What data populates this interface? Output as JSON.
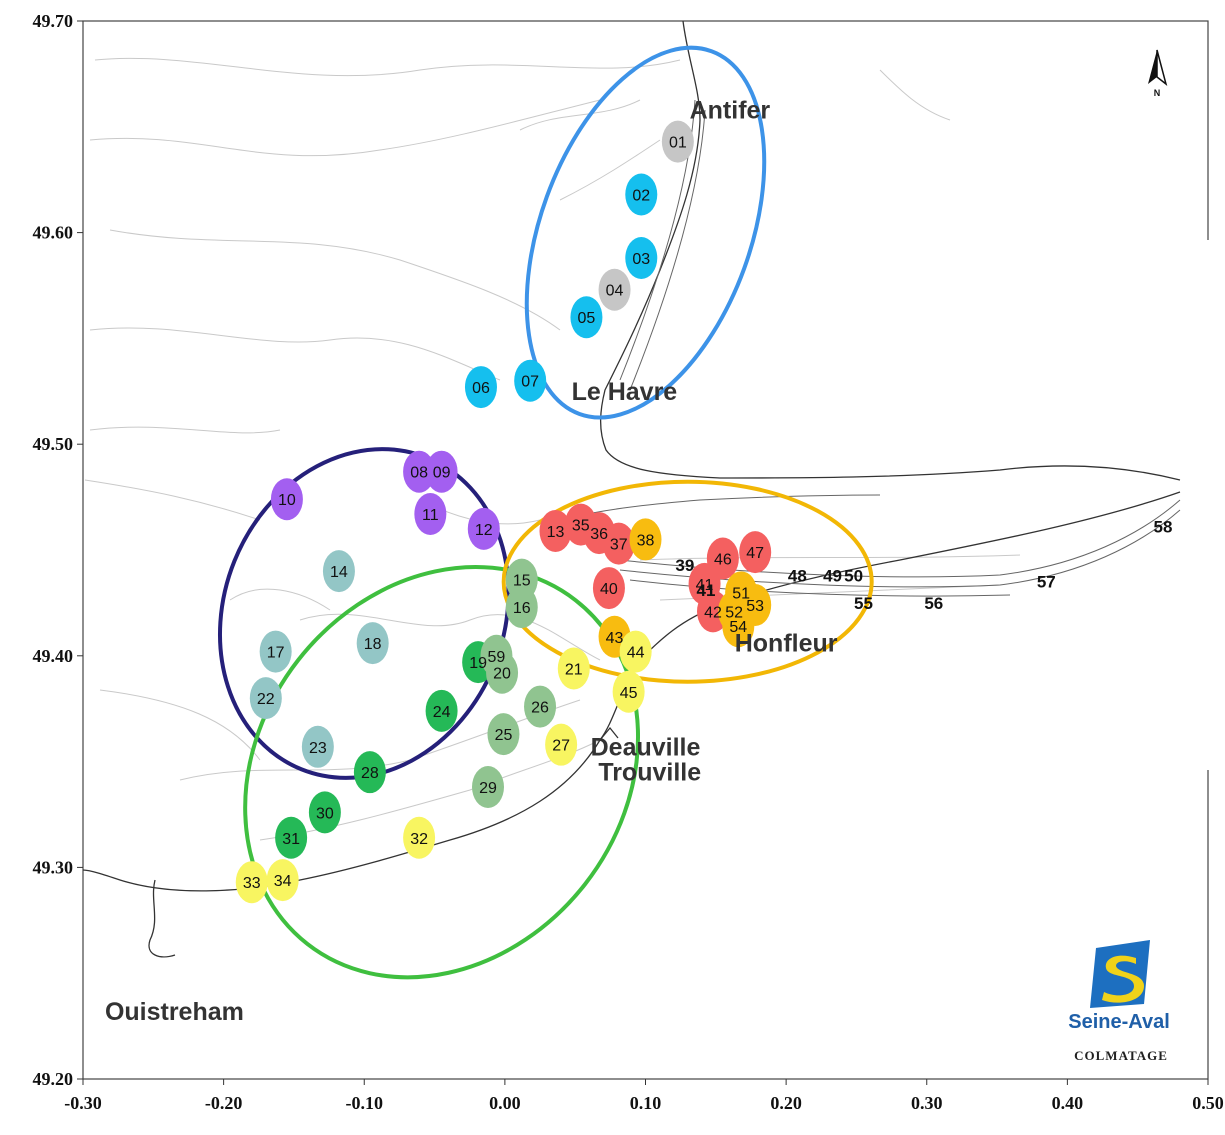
{
  "axes": {
    "x_ticks": [
      {
        "value": -0.3,
        "label": "-0.30"
      },
      {
        "value": -0.2,
        "label": "-0.20"
      },
      {
        "value": -0.1,
        "label": "-0.10"
      },
      {
        "value": 0.0,
        "label": "0.00"
      },
      {
        "value": 0.1,
        "label": "0.10"
      },
      {
        "value": 0.2,
        "label": "0.20"
      },
      {
        "value": 0.3,
        "label": "0.30"
      },
      {
        "value": 0.4,
        "label": "0.40"
      },
      {
        "value": 0.5,
        "label": "0.50"
      }
    ],
    "y_ticks": [
      {
        "value": 49.7,
        "label": "49.70"
      },
      {
        "value": 49.6,
        "label": "49.60"
      },
      {
        "value": 49.5,
        "label": "49.50"
      },
      {
        "value": 49.4,
        "label": "49.40"
      },
      {
        "value": 49.3,
        "label": "49.30"
      },
      {
        "value": 49.2,
        "label": "49.20"
      }
    ],
    "xlim": [
      -0.3,
      0.5
    ],
    "ylim": [
      49.2,
      49.7
    ]
  },
  "places": [
    {
      "name": "Antifer",
      "lon": 0.16,
      "lat": 49.654
    },
    {
      "name": "Le Havre",
      "lon": 0.085,
      "lat": 49.521
    },
    {
      "name": "Honfleur",
      "lon": 0.2,
      "lat": 49.402
    },
    {
      "name": "Deauville",
      "lon": 0.1,
      "lat": 49.353
    },
    {
      "name": "Trouville",
      "lon": 0.103,
      "lat": 49.341
    },
    {
      "name": "Ouistreham",
      "lon": -0.235,
      "lat": 49.228
    }
  ],
  "compass": {
    "label": "N"
  },
  "logo": {
    "name": "Seine-Aval",
    "caption": "COLMATAGE"
  },
  "groups": [
    {
      "color": "#3d93e8",
      "cx": 0.1,
      "cy": 49.6,
      "rx": 105,
      "ry": 193,
      "rot": 20
    },
    {
      "color": "#25207a",
      "cx": -0.1,
      "cy": 49.42,
      "rx": 140,
      "ry": 168,
      "rot": 22
    },
    {
      "color": "#3fbf3f",
      "cx": -0.045,
      "cy": 49.345,
      "rx": 182,
      "ry": 218,
      "rot": 38
    },
    {
      "color": "#f2b705",
      "cx": 0.13,
      "cy": 49.435,
      "rx": 184,
      "ry": 100,
      "rot": 0
    }
  ],
  "colors": {
    "grey": "#c6c6c6",
    "cyan": "#15bfee",
    "purple": "#a35ff0",
    "teal": "#93c6c6",
    "lightgreen": "#90c490",
    "green": "#25b957",
    "yellow": "#f8f561",
    "red": "#f46060",
    "orange": "#f8bc10"
  },
  "stations": [
    {
      "id": "01",
      "lon": 0.123,
      "lat": 49.643,
      "color": "grey"
    },
    {
      "id": "02",
      "lon": 0.097,
      "lat": 49.618,
      "color": "cyan"
    },
    {
      "id": "03",
      "lon": 0.097,
      "lat": 49.588,
      "color": "cyan"
    },
    {
      "id": "04",
      "lon": 0.078,
      "lat": 49.573,
      "color": "grey"
    },
    {
      "id": "05",
      "lon": 0.058,
      "lat": 49.56,
      "color": "cyan"
    },
    {
      "id": "06",
      "lon": -0.017,
      "lat": 49.527,
      "color": "cyan"
    },
    {
      "id": "07",
      "lon": 0.018,
      "lat": 49.53,
      "color": "cyan"
    },
    {
      "id": "08",
      "lon": -0.061,
      "lat": 49.487,
      "color": "purple"
    },
    {
      "id": "09",
      "lon": -0.045,
      "lat": 49.487,
      "color": "purple"
    },
    {
      "id": "10",
      "lon": -0.155,
      "lat": 49.474,
      "color": "purple"
    },
    {
      "id": "11",
      "lon": -0.053,
      "lat": 49.467,
      "color": "purple"
    },
    {
      "id": "12",
      "lon": -0.015,
      "lat": 49.46,
      "color": "purple"
    },
    {
      "id": "13",
      "lon": 0.036,
      "lat": 49.459,
      "color": "red"
    },
    {
      "id": "14",
      "lon": -0.118,
      "lat": 49.44,
      "color": "teal"
    },
    {
      "id": "15",
      "lon": 0.012,
      "lat": 49.436,
      "color": "lightgreen"
    },
    {
      "id": "16",
      "lon": 0.012,
      "lat": 49.423,
      "color": "lightgreen"
    },
    {
      "id": "17",
      "lon": -0.163,
      "lat": 49.402,
      "color": "teal"
    },
    {
      "id": "18",
      "lon": -0.094,
      "lat": 49.406,
      "color": "teal"
    },
    {
      "id": "19",
      "lon": -0.019,
      "lat": 49.397,
      "color": "green"
    },
    {
      "id": "59",
      "lon": -0.006,
      "lat": 49.4,
      "color": "lightgreen"
    },
    {
      "id": "20",
      "lon": -0.002,
      "lat": 49.392,
      "color": "lightgreen"
    },
    {
      "id": "21",
      "lon": 0.049,
      "lat": 49.394,
      "color": "yellow"
    },
    {
      "id": "22",
      "lon": -0.17,
      "lat": 49.38,
      "color": "teal"
    },
    {
      "id": "23",
      "lon": -0.133,
      "lat": 49.357,
      "color": "teal"
    },
    {
      "id": "24",
      "lon": -0.045,
      "lat": 49.374,
      "color": "green"
    },
    {
      "id": "25",
      "lon": -0.001,
      "lat": 49.363,
      "color": "lightgreen"
    },
    {
      "id": "26",
      "lon": 0.025,
      "lat": 49.376,
      "color": "lightgreen"
    },
    {
      "id": "27",
      "lon": 0.04,
      "lat": 49.358,
      "color": "yellow"
    },
    {
      "id": "28",
      "lon": -0.096,
      "lat": 49.345,
      "color": "green"
    },
    {
      "id": "29",
      "lon": -0.012,
      "lat": 49.338,
      "color": "lightgreen"
    },
    {
      "id": "30",
      "lon": -0.128,
      "lat": 49.326,
      "color": "green"
    },
    {
      "id": "31",
      "lon": -0.152,
      "lat": 49.314,
      "color": "green"
    },
    {
      "id": "32",
      "lon": -0.061,
      "lat": 49.314,
      "color": "yellow"
    },
    {
      "id": "33",
      "lon": -0.18,
      "lat": 49.293,
      "color": "yellow"
    },
    {
      "id": "34",
      "lon": -0.158,
      "lat": 49.294,
      "color": "yellow"
    },
    {
      "id": "35",
      "lon": 0.054,
      "lat": 49.462,
      "color": "red"
    },
    {
      "id": "36",
      "lon": 0.067,
      "lat": 49.458,
      "color": "red"
    },
    {
      "id": "37",
      "lon": 0.081,
      "lat": 49.453,
      "color": "red"
    },
    {
      "id": "38",
      "lon": 0.1,
      "lat": 49.455,
      "color": "orange"
    },
    {
      "id": "40",
      "lon": 0.074,
      "lat": 49.432,
      "color": "red"
    },
    {
      "id": "43",
      "lon": 0.078,
      "lat": 49.409,
      "color": "orange"
    },
    {
      "id": "44",
      "lon": 0.093,
      "lat": 49.402,
      "color": "yellow"
    },
    {
      "id": "45",
      "lon": 0.088,
      "lat": 49.383,
      "color": "yellow"
    },
    {
      "id": "46",
      "lon": 0.155,
      "lat": 49.446,
      "color": "red"
    },
    {
      "id": "47",
      "lon": 0.178,
      "lat": 49.449,
      "color": "red"
    },
    {
      "id": "41",
      "lon": 0.142,
      "lat": 49.434,
      "color": "red"
    },
    {
      "id": "42",
      "lon": 0.148,
      "lat": 49.421,
      "color": "red"
    },
    {
      "id": "52",
      "lon": 0.163,
      "lat": 49.421,
      "color": "orange"
    },
    {
      "id": "51",
      "lon": 0.168,
      "lat": 49.43,
      "color": "orange"
    },
    {
      "id": "53",
      "lon": 0.178,
      "lat": 49.424,
      "color": "orange"
    },
    {
      "id": "54",
      "lon": 0.166,
      "lat": 49.414,
      "color": "orange"
    }
  ],
  "bare_stations": [
    {
      "id": "39",
      "lon": 0.128,
      "lat": 49.443
    },
    {
      "id": "41",
      "lon": 0.143,
      "lat": 49.431
    },
    {
      "id": "48",
      "lon": 0.208,
      "lat": 49.438
    },
    {
      "id": "49",
      "lon": 0.233,
      "lat": 49.438
    },
    {
      "id": "50",
      "lon": 0.248,
      "lat": 49.438
    },
    {
      "id": "55",
      "lon": 0.255,
      "lat": 49.425
    },
    {
      "id": "56",
      "lon": 0.305,
      "lat": 49.425
    },
    {
      "id": "57",
      "lon": 0.385,
      "lat": 49.435
    },
    {
      "id": "58",
      "lon": 0.468,
      "lat": 49.461
    }
  ]
}
